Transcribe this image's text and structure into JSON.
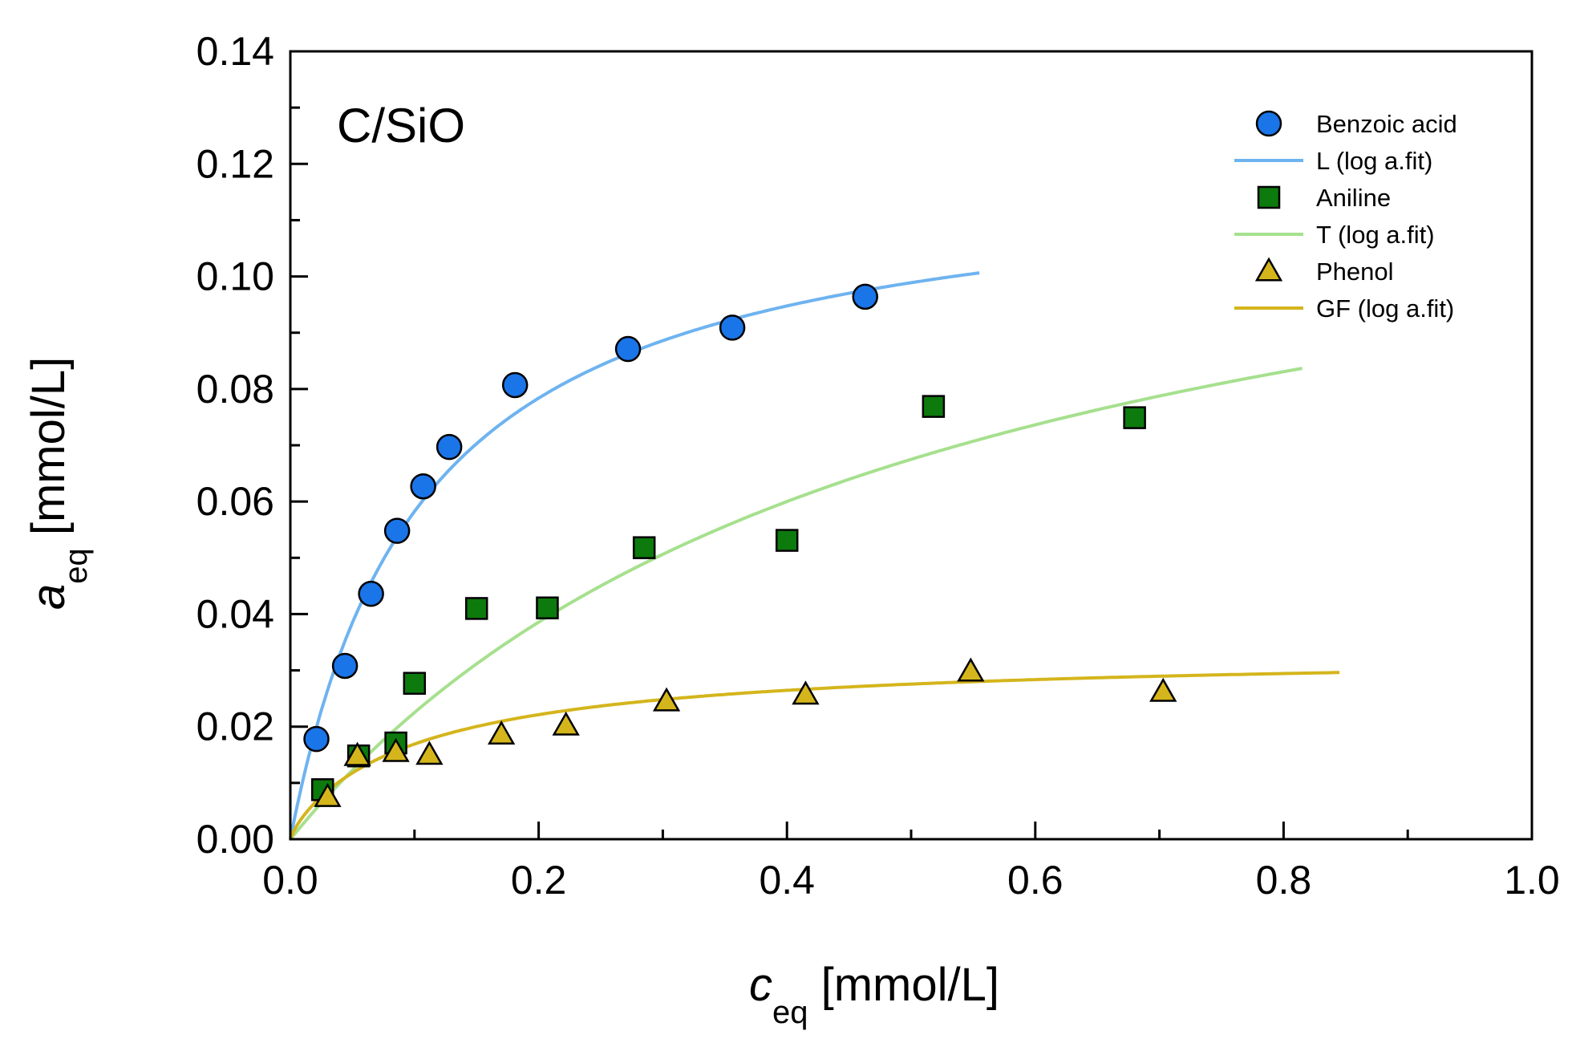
{
  "chart_data": {
    "type": "scatter",
    "panel_label": "C/SiO",
    "xlabel": {
      "var": "c",
      "sub": "eq",
      "unit": " [mmol/L]"
    },
    "ylabel": {
      "var": "a",
      "sub": "eq",
      "unit": " [mmol/L]"
    },
    "xlim": [
      0.0,
      1.0
    ],
    "ylim": [
      0.0,
      0.14
    ],
    "xticks": [
      "0.0",
      "0.2",
      "0.4",
      "0.6",
      "0.8",
      "1.0"
    ],
    "yticks": [
      "0.00",
      "0.02",
      "0.04",
      "0.06",
      "0.08",
      "0.10",
      "0.12",
      "0.14"
    ],
    "grid": false,
    "legend_position": "top-right",
    "colors": {
      "benzoic": "#1a75e8",
      "benzoic_fit": "#6eb3f0",
      "aniline": "#0d7a0d",
      "aniline_fit": "#a6e08e",
      "phenol": "#d4b51c",
      "phenol_fit": "#d4b51c"
    },
    "series": [
      {
        "name": "Benzoic acid",
        "kind": "points",
        "marker": "circle",
        "color_key": "benzoic",
        "x": [
          0.021,
          0.044,
          0.065,
          0.086,
          0.107,
          0.128,
          0.181,
          0.272,
          0.356,
          0.463
        ],
        "y": [
          0.0178,
          0.0308,
          0.0436,
          0.0548,
          0.0627,
          0.0697,
          0.0807,
          0.0871,
          0.0909,
          0.0964
        ]
      },
      {
        "name": "L (log a.fit)",
        "kind": "line",
        "model": "langmuir",
        "color_key": "benzoic_fit",
        "params": {
          "qmax": 0.1198,
          "K": 9.46
        },
        "x_range": [
          0.0,
          0.555
        ]
      },
      {
        "name": "Aniline",
        "kind": "points",
        "marker": "square",
        "color_key": "aniline",
        "x": [
          0.026,
          0.055,
          0.085,
          0.1,
          0.15,
          0.207,
          0.285,
          0.4,
          0.518,
          0.68
        ],
        "y": [
          0.0088,
          0.0148,
          0.0171,
          0.0277,
          0.041,
          0.0411,
          0.0518,
          0.0531,
          0.0769,
          0.0749
        ]
      },
      {
        "name": "T (log a.fit)",
        "kind": "line",
        "model": "toth",
        "color_key": "aniline_fit",
        "params": {
          "qmax": 0.135,
          "K": 2.0,
          "t": 1.0
        },
        "x_range": [
          0.0,
          0.815
        ]
      },
      {
        "name": "Phenol",
        "kind": "points",
        "marker": "triangle",
        "color_key": "phenol",
        "x": [
          0.03,
          0.054,
          0.085,
          0.112,
          0.17,
          0.222,
          0.303,
          0.415,
          0.548,
          0.703
        ],
        "y": [
          0.0075,
          0.0148,
          0.0155,
          0.015,
          0.0186,
          0.0202,
          0.0245,
          0.0257,
          0.0298,
          0.0262
        ]
      },
      {
        "name": "GF (log a.fit)",
        "kind": "line",
        "model": "generalized_freundlich",
        "color_key": "phenol_fit",
        "params": {
          "qmax": 0.0333,
          "K": 7.5,
          "n": 0.8
        },
        "x_range": [
          0.0,
          0.845
        ]
      }
    ]
  }
}
